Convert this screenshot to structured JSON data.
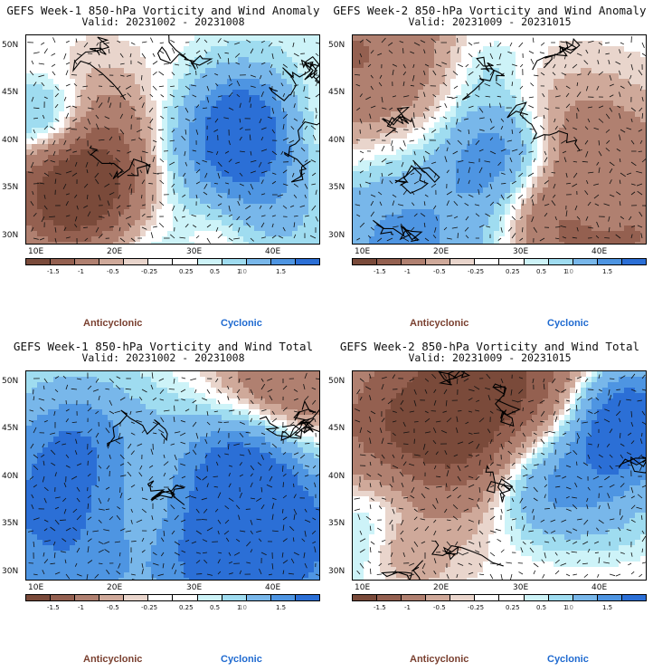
{
  "panels": [
    {
      "title_line1": "GEFS Week-1 850-hPa Vorticity and Wind Anomaly",
      "title_line2": "Valid: 20231002 - 20231008",
      "seed": 11
    },
    {
      "title_line1": "GEFS Week-2 850-hPa Vorticity and Wind Anomaly",
      "title_line2": "Valid: 20231009 - 20231015",
      "seed": 23
    },
    {
      "title_line1": "GEFS Week-1 850-hPa Vorticity and Wind Total",
      "title_line2": "Valid: 20231002 - 20231008",
      "seed": 37
    },
    {
      "title_line1": "GEFS Week-2 850-hPa Vorticity and Wind Total",
      "title_line2": "Valid: 20231009 - 20231015",
      "seed": 51
    }
  ],
  "axes": {
    "lat_labels": [
      "50N",
      "45N",
      "40N",
      "35N",
      "30N"
    ],
    "lon_labels": [
      "10E",
      "20E",
      "30E",
      "40E"
    ]
  },
  "colorbar": {
    "labels": [
      "-1.5",
      "-1",
      "-0.5",
      "-0.25",
      "0.25",
      "0.5",
      "1",
      "1.5"
    ],
    "scale_marker": "10",
    "colors": [
      "#7a4a3a",
      "#946050",
      "#b08070",
      "#cfa99a",
      "#e9d5cc",
      "#ffffff",
      "#ffffff",
      "#cdf3f8",
      "#9fdcf0",
      "#78b7ea",
      "#4e95e2",
      "#2b6fd6"
    ]
  },
  "legend": {
    "anticyclonic": "Anticyclonic",
    "cyclonic": "Cyclonic",
    "anticyclonic_color": "#7a4030",
    "cyclonic_color": "#1f6ad0"
  },
  "chart_data": [
    {
      "type": "heatmap",
      "title": "GEFS Week-1 850-hPa Vorticity and Wind Anomaly",
      "subtitle": "Valid: 20231002 - 20231008",
      "xlim": [
        "8E",
        "48E"
      ],
      "ylim": [
        "29N",
        "51N"
      ],
      "levels": [
        -1.5,
        -1,
        -0.5,
        -0.25,
        0.25,
        0.5,
        1,
        1.5
      ]
    },
    {
      "type": "heatmap",
      "title": "GEFS Week-2 850-hPa Vorticity and Wind Anomaly",
      "subtitle": "Valid: 20231009 - 20231015",
      "xlim": [
        "8E",
        "48E"
      ],
      "ylim": [
        "29N",
        "51N"
      ],
      "levels": [
        -1.5,
        -1,
        -0.5,
        -0.25,
        0.25,
        0.5,
        1,
        1.5
      ]
    },
    {
      "type": "heatmap",
      "title": "GEFS Week-1 850-hPa Vorticity and Wind Total",
      "subtitle": "Valid: 20231002 - 20231008",
      "xlim": [
        "8E",
        "48E"
      ],
      "ylim": [
        "29N",
        "51N"
      ],
      "levels": [
        -1.5,
        -1,
        -0.5,
        -0.25,
        0.25,
        0.5,
        1,
        1.5
      ]
    },
    {
      "type": "heatmap",
      "title": "GEFS Week-2 850-hPa Vorticity and Wind Total",
      "subtitle": "Valid: 20231009 - 20231015",
      "xlim": [
        "8E",
        "48E"
      ],
      "ylim": [
        "29N",
        "51N"
      ],
      "levels": [
        -1.5,
        -1,
        -0.5,
        -0.25,
        0.25,
        0.5,
        1,
        1.5
      ]
    }
  ]
}
